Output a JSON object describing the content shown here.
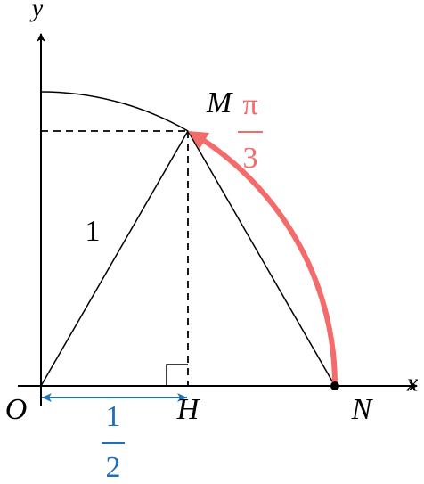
{
  "axes": {
    "x_label": "x",
    "y_label": "y"
  },
  "points": {
    "O": "O",
    "H": "H",
    "N": "N",
    "M": "M"
  },
  "angle_label": {
    "numerator": "π",
    "denominator": "3"
  },
  "side_label": "1",
  "segment_label": {
    "numerator": "1",
    "denominator": "2"
  }
}
